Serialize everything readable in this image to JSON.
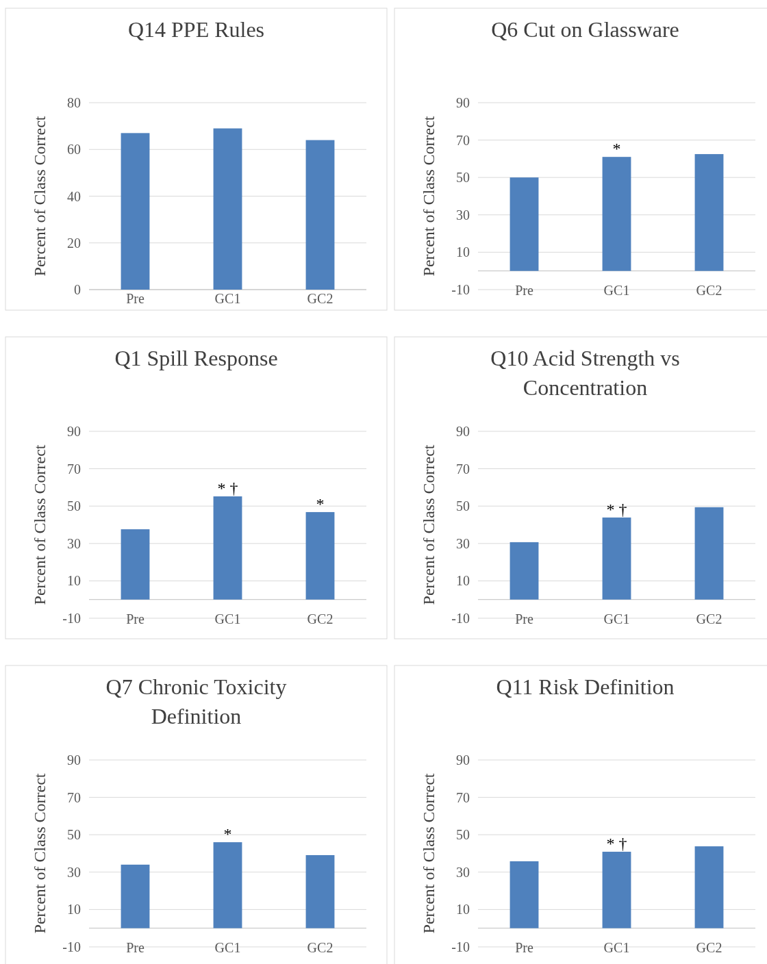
{
  "chart_data": [
    {
      "type": "bar",
      "title": "Q14 PPE Rules",
      "ylabel": "Percent of Class Correct",
      "categories": [
        "Pre",
        "GC1",
        "GC2"
      ],
      "values": [
        67,
        69,
        64
      ],
      "color": "#4f81bd",
      "ylim": [
        0,
        80
      ],
      "yticks": [
        0,
        20,
        40,
        60,
        80
      ],
      "grid": "y"
    },
    {
      "type": "bar",
      "title": "Q6 Cut on Glassware",
      "ylabel": "Percent of Class Correct",
      "categories": [
        "Pre",
        "GC1",
        "GC2"
      ],
      "values": [
        50,
        61,
        62.5
      ],
      "color": "#4f81bd",
      "ylim": [
        -10,
        90
      ],
      "yticks": [
        -10,
        10,
        30,
        50,
        70,
        90
      ],
      "grid": "y",
      "annotations": [
        {
          "text": "*",
          "x": "GC1",
          "y": 61
        }
      ]
    },
    {
      "type": "bar",
      "title": "Q1 Spill Response",
      "ylabel": "Percent of Class Correct",
      "categories": [
        "Pre",
        "GC1",
        "GC2"
      ],
      "values": [
        37.6,
        55.2,
        46.8
      ],
      "color": "#4f81bd",
      "ylim": [
        -10,
        90
      ],
      "yticks": [
        -10,
        10,
        30,
        50,
        70,
        90
      ],
      "grid": "y",
      "annotations": [
        {
          "text": "* †",
          "x": "GC1",
          "y": 55.2
        },
        {
          "text": "*",
          "x": "GC2",
          "y": 46.8
        }
      ]
    },
    {
      "type": "bar",
      "title": "Q10 Acid Strength vs Concentration",
      "ylabel": "Percent of Class Correct",
      "categories": [
        "Pre",
        "GC1",
        "GC2"
      ],
      "values": [
        30.7,
        43.9,
        49.4
      ],
      "color": "#4f81bd",
      "ylim": [
        -10,
        90
      ],
      "yticks": [
        -10,
        10,
        30,
        50,
        70,
        90
      ],
      "grid": "y",
      "annotations": [
        {
          "text": "* †",
          "x": "GC1",
          "y": 43.9
        }
      ]
    },
    {
      "type": "bar",
      "title": "Q7 Chronic Toxicity Definition",
      "ylabel": "Percent of Class Correct",
      "categories": [
        "Pre",
        "GC1",
        "GC2"
      ],
      "values": [
        34,
        46,
        39.1
      ],
      "color": "#4f81bd",
      "ylim": [
        -10,
        90
      ],
      "yticks": [
        -10,
        10,
        30,
        50,
        70,
        90
      ],
      "grid": "y",
      "annotations": [
        {
          "text": "*",
          "x": "GC1",
          "y": 46
        }
      ]
    },
    {
      "type": "bar",
      "title": "Q11 Risk Definition",
      "ylabel": "Percent of Class Correct",
      "categories": [
        "Pre",
        "GC1",
        "GC2"
      ],
      "values": [
        35.8,
        40.9,
        43.8
      ],
      "color": "#4f81bd",
      "ylim": [
        -10,
        90
      ],
      "yticks": [
        -10,
        10,
        30,
        50,
        70,
        90
      ],
      "grid": "y",
      "annotations": [
        {
          "text": "* †",
          "x": "GC1",
          "y": 40.9
        }
      ]
    }
  ]
}
